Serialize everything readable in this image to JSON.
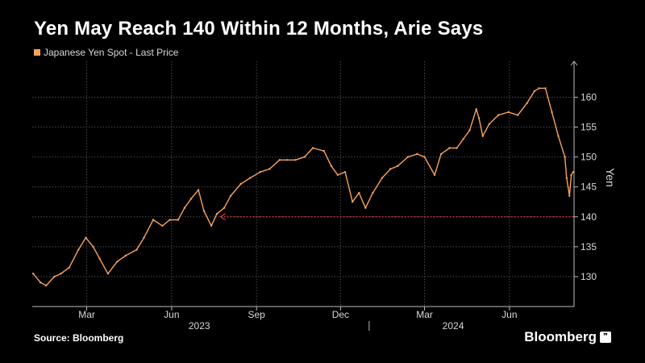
{
  "title": "Yen May Reach 140 Within 12 Months, Arie Says",
  "legend_label": "Japanese Yen Spot - Last Price",
  "source": "Source: Bloomberg",
  "brand": "Bloomberg",
  "colors": {
    "series": "#f7a35c",
    "grid": "#4a4a4a",
    "reference": "#d9383a"
  },
  "chart_data": {
    "type": "line",
    "title": "Yen May Reach 140 Within 12 Months, Arie Says",
    "ylabel": "Yen",
    "xlabel": "",
    "ylim": [
      125,
      166
    ],
    "xlim": [
      "2023-01-01",
      "2024-08-10"
    ],
    "yticks": [
      130,
      135,
      140,
      145,
      150,
      155,
      160
    ],
    "xticks": [
      {
        "date": "2023-03-01",
        "label": "Mar"
      },
      {
        "date": "2023-06-01",
        "label": "Jun"
      },
      {
        "date": "2023-09-01",
        "label": "Sep"
      },
      {
        "date": "2023-12-01",
        "label": "Dec"
      },
      {
        "date": "2024-03-01",
        "label": "Mar"
      },
      {
        "date": "2024-06-01",
        "label": "Jun"
      }
    ],
    "year_labels": [
      {
        "date": "2023-07-01",
        "label": "2023"
      },
      {
        "date": "2024-04-01",
        "label": "2024"
      }
    ],
    "year_divider": "2024-01-01",
    "grid": true,
    "legend_position": "top-left",
    "series": [
      {
        "name": "Japanese Yen Spot - Last Price",
        "x": [
          "2023-01-02",
          "2023-01-10",
          "2023-01-16",
          "2023-01-25",
          "2023-02-01",
          "2023-02-10",
          "2023-02-20",
          "2023-02-28",
          "2023-03-08",
          "2023-03-15",
          "2023-03-24",
          "2023-04-03",
          "2023-04-12",
          "2023-04-24",
          "2023-05-02",
          "2023-05-12",
          "2023-05-22",
          "2023-05-30",
          "2023-06-08",
          "2023-06-15",
          "2023-06-22",
          "2023-06-30",
          "2023-07-06",
          "2023-07-14",
          "2023-07-20",
          "2023-07-28",
          "2023-08-04",
          "2023-08-15",
          "2023-08-25",
          "2023-09-05",
          "2023-09-15",
          "2023-09-26",
          "2023-10-04",
          "2023-10-13",
          "2023-10-23",
          "2023-11-01",
          "2023-11-13",
          "2023-11-21",
          "2023-11-28",
          "2023-12-06",
          "2023-12-14",
          "2023-12-21",
          "2023-12-28",
          "2024-01-05",
          "2024-01-15",
          "2024-01-24",
          "2024-02-01",
          "2024-02-12",
          "2024-02-22",
          "2024-03-01",
          "2024-03-12",
          "2024-03-19",
          "2024-03-28",
          "2024-04-05",
          "2024-04-12",
          "2024-04-19",
          "2024-04-26",
          "2024-04-29",
          "2024-05-03",
          "2024-05-10",
          "2024-05-20",
          "2024-05-31",
          "2024-06-10",
          "2024-06-20",
          "2024-06-28",
          "2024-07-03",
          "2024-07-10",
          "2024-07-17",
          "2024-07-24",
          "2024-07-31",
          "2024-08-02",
          "2024-08-05",
          "2024-08-07",
          "2024-08-09"
        ],
        "values": [
          130.5,
          129.0,
          128.5,
          130.0,
          130.5,
          131.5,
          134.5,
          136.5,
          135.0,
          133.0,
          130.5,
          132.5,
          133.5,
          134.5,
          136.5,
          139.5,
          138.5,
          139.5,
          139.5,
          141.5,
          143.0,
          144.5,
          141.0,
          138.5,
          140.5,
          141.5,
          143.5,
          145.5,
          146.5,
          147.5,
          148.0,
          149.5,
          149.5,
          149.5,
          150.0,
          151.5,
          151.0,
          148.5,
          147.0,
          147.5,
          142.5,
          144.0,
          141.5,
          144.0,
          146.5,
          148.0,
          148.5,
          150.0,
          150.5,
          150.0,
          147.0,
          150.5,
          151.5,
          151.5,
          153.0,
          154.5,
          158.0,
          156.5,
          153.5,
          155.5,
          157.0,
          157.5,
          157.0,
          159.0,
          161.0,
          161.5,
          161.5,
          157.5,
          153.5,
          150.0,
          146.5,
          143.5,
          147.0,
          147.5
        ]
      }
    ],
    "reference_line": {
      "y": 140,
      "from": "2023-07-24",
      "to": "2024-08-10"
    }
  }
}
